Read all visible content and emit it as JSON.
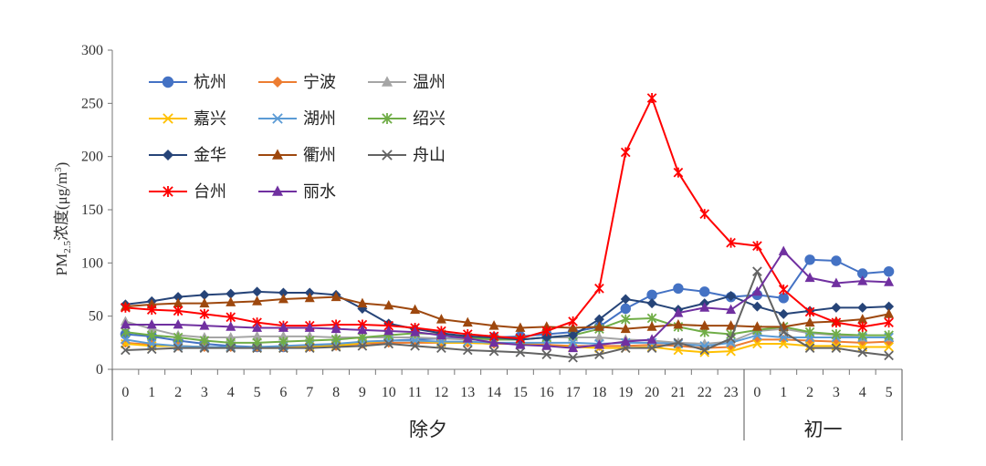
{
  "chart_data": {
    "type": "line",
    "ylabel": {
      "prefix": "PM",
      "sub": "2.5",
      "mid": "浓度(μg/m",
      "sup": "3",
      "suffix": ")"
    },
    "ylim": [
      0,
      300
    ],
    "yticks": [
      "0",
      "50",
      "100",
      "150",
      "200",
      "250",
      "300"
    ],
    "x_tick_labels": [
      "0",
      "1",
      "2",
      "3",
      "4",
      "5",
      "6",
      "7",
      "8",
      "9",
      "10",
      "11",
      "12",
      "13",
      "14",
      "15",
      "16",
      "17",
      "18",
      "19",
      "20",
      "21",
      "22",
      "23",
      "0",
      "1",
      "2",
      "3",
      "4",
      "5"
    ],
    "groups": [
      {
        "label": "除夕",
        "start": 0,
        "end": 23
      },
      {
        "label": "初一",
        "start": 24,
        "end": 29
      }
    ],
    "grid": false,
    "legend_position": "top-left",
    "series": [
      {
        "name": "杭州",
        "color": "#4472C4",
        "marker": "circle",
        "values": [
          33,
          31,
          27,
          24,
          22,
          21,
          21,
          22,
          23,
          25,
          27,
          28,
          29,
          30,
          30,
          31,
          33,
          35,
          40,
          57,
          70,
          76,
          73,
          68,
          70,
          67,
          103,
          102,
          90,
          92
        ]
      },
      {
        "name": "宁波",
        "color": "#ED7D31",
        "marker": "diamond",
        "values": [
          25,
          23,
          22,
          21,
          21,
          21,
          21,
          21,
          22,
          24,
          25,
          25,
          25,
          25,
          24,
          24,
          23,
          22,
          22,
          22,
          23,
          22,
          20,
          21,
          28,
          28,
          27,
          26,
          25,
          26
        ]
      },
      {
        "name": "温州",
        "color": "#A5A5A5",
        "marker": "triangle",
        "values": [
          45,
          38,
          32,
          30,
          30,
          31,
          31,
          31,
          30,
          30,
          30,
          30,
          29,
          28,
          28,
          28,
          30,
          30,
          30,
          28,
          27,
          25,
          24,
          26,
          36,
          38,
          34,
          32,
          30,
          30
        ]
      },
      {
        "name": "嘉兴",
        "color": "#FFC000",
        "marker": "x",
        "values": [
          24,
          22,
          22,
          21,
          21,
          20,
          20,
          21,
          22,
          25,
          27,
          27,
          25,
          25,
          24,
          24,
          22,
          21,
          20,
          20,
          21,
          18,
          16,
          17,
          24,
          24,
          22,
          22,
          21,
          21
        ]
      },
      {
        "name": "湖州",
        "color": "#5B9BD5",
        "marker": "x",
        "values": [
          28,
          24,
          22,
          21,
          21,
          21,
          22,
          23,
          24,
          26,
          27,
          27,
          26,
          26,
          25,
          25,
          25,
          25,
          24,
          25,
          25,
          24,
          22,
          25,
          32,
          30,
          30,
          30,
          30,
          30
        ]
      },
      {
        "name": "绍兴",
        "color": "#70AD47",
        "marker": "asterisk",
        "values": [
          35,
          32,
          30,
          27,
          25,
          25,
          26,
          27,
          28,
          30,
          32,
          34,
          33,
          30,
          28,
          28,
          30,
          32,
          38,
          47,
          48,
          40,
          35,
          33,
          37,
          40,
          35,
          33,
          32,
          32
        ]
      },
      {
        "name": "金华",
        "color": "#264478",
        "marker": "diamond",
        "values": [
          61,
          64,
          68,
          70,
          71,
          73,
          72,
          72,
          70,
          57,
          43,
          38,
          34,
          31,
          30,
          28,
          30,
          32,
          47,
          66,
          62,
          56,
          62,
          69,
          59,
          52,
          55,
          58,
          58,
          59
        ]
      },
      {
        "name": "衢州",
        "color": "#9E480E",
        "marker": "triangle",
        "values": [
          59,
          61,
          62,
          62,
          63,
          64,
          66,
          67,
          68,
          62,
          60,
          56,
          47,
          44,
          41,
          39,
          40,
          39,
          40,
          38,
          40,
          42,
          41,
          41,
          40,
          40,
          44,
          45,
          47,
          52
        ]
      },
      {
        "name": "舟山",
        "color": "#636363",
        "marker": "x",
        "values": [
          18,
          19,
          20,
          20,
          20,
          20,
          20,
          20,
          21,
          22,
          24,
          22,
          20,
          18,
          17,
          16,
          14,
          11,
          14,
          20,
          20,
          25,
          18,
          29,
          92,
          35,
          20,
          20,
          16,
          13
        ]
      },
      {
        "name": "台州",
        "color": "#FF0000",
        "marker": "asterisk",
        "values": [
          58,
          56,
          55,
          52,
          49,
          44,
          41,
          41,
          42,
          42,
          41,
          39,
          36,
          33,
          31,
          29,
          36,
          45,
          76,
          204,
          255,
          185,
          146,
          119,
          116,
          75,
          54,
          44,
          40,
          44
        ]
      },
      {
        "name": "丽水",
        "color": "#7030A0",
        "marker": "triangle",
        "values": [
          42,
          42,
          42,
          41,
          40,
          39,
          39,
          39,
          38,
          37,
          36,
          35,
          32,
          29,
          25,
          23,
          22,
          20,
          23,
          26,
          28,
          53,
          58,
          56,
          73,
          111,
          86,
          81,
          83,
          82
        ]
      }
    ]
  }
}
